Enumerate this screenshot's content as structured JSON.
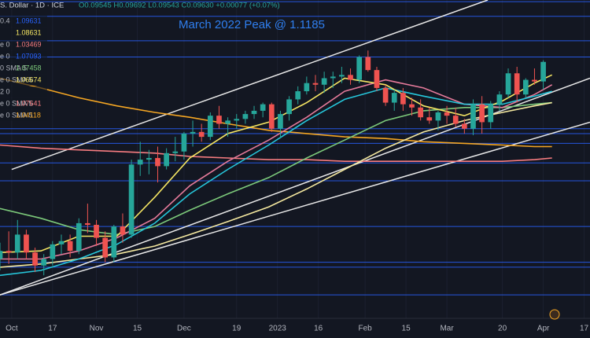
{
  "chart_data": {
    "type": "candlestick",
    "symbol": "S. Dollar · 1D · ICE",
    "ohlc_header": "O0.09545 H0.09692 L0.09543 C0.09630 +0.00077 (+0.07%)",
    "annotation": "March 2022 Peak @ 1.1185",
    "legend_rows": [
      {
        "label": "0.4",
        "value": 1.09631,
        "color": "#2962ff"
      },
      {
        "label": "",
        "value": 1.08631,
        "color": "#f5e663"
      },
      {
        "label": "e 0",
        "value": 1.03469,
        "color": "#f77c80"
      },
      {
        "label": "e 0",
        "value": 1.07093,
        "color": "#2962ff"
      },
      {
        "label": "0 SMA 5",
        "value": 1.07458,
        "color": "#7cc97a"
      },
      {
        "label": "e 0 SMA 5",
        "value": 1.06674,
        "color": "#f5e663"
      },
      {
        "label": "2 0",
        "value": null,
        "color": "#b2b5be"
      },
      {
        "label": "e 0 SMA 5",
        "value": 1.07641,
        "color": "#f77c80"
      },
      {
        "label": "e 0 SMA 5",
        "value": 1.04118,
        "color": "#f5a623"
      }
    ],
    "xlim": [
      -4,
      198
    ],
    "ylim": [
      0.941,
      1.134
    ],
    "xticks": [
      {
        "value": 0,
        "label": "Oct"
      },
      {
        "value": 14,
        "label": "17"
      },
      {
        "value": 29,
        "label": "Nov"
      },
      {
        "value": 43,
        "label": "15"
      },
      {
        "value": 59,
        "label": "Dec"
      },
      {
        "value": 77,
        "label": "19"
      },
      {
        "value": 91,
        "label": "2023"
      },
      {
        "value": 105,
        "label": "16"
      },
      {
        "value": 121,
        "label": "Feb"
      },
      {
        "value": 135,
        "label": "15"
      },
      {
        "value": 149,
        "label": "Mar"
      },
      {
        "value": 168,
        "label": "20"
      },
      {
        "value": 182,
        "label": "Apr"
      },
      {
        "value": 196,
        "label": "17"
      }
    ],
    "up_color": "#26a69a",
    "down_color": "#ef5350",
    "candles": {
      "x": [
        -4,
        -1,
        2,
        5,
        8,
        11,
        14,
        17,
        20,
        23,
        26,
        29,
        32,
        35,
        38,
        41,
        44,
        47,
        50,
        53,
        56,
        59,
        62,
        65,
        68,
        71,
        74,
        77,
        80,
        83,
        86,
        89,
        92,
        95,
        98,
        101,
        104,
        107,
        110,
        113,
        116,
        119,
        122,
        125,
        128,
        131,
        134,
        137,
        140,
        143,
        146,
        149,
        152,
        155,
        158,
        161,
        164,
        167,
        170,
        173,
        176,
        179,
        182
      ],
      "open": [
        0.975,
        0.98,
        0.979,
        0.99,
        0.979,
        0.971,
        0.975,
        0.984,
        0.986,
        0.98,
        0.997,
        0.996,
        0.988,
        0.976,
        0.995,
        0.99,
        1.033,
        1.036,
        1.037,
        1.032,
        1.04,
        1.041,
        1.052,
        1.053,
        1.05,
        1.063,
        1.058,
        1.06,
        1.061,
        1.064,
        1.066,
        1.07,
        1.055,
        1.064,
        1.073,
        1.078,
        1.083,
        1.082,
        1.086,
        1.087,
        1.088,
        1.085,
        1.099,
        1.091,
        1.08,
        1.071,
        1.077,
        1.07,
        1.068,
        1.062,
        1.06,
        1.065,
        1.063,
        1.058,
        1.055,
        1.07,
        1.059,
        1.07,
        1.076,
        1.089,
        1.076,
        1.085,
        1.084
      ],
      "high": [
        0.985,
        0.992,
        0.999,
        0.993,
        0.982,
        0.978,
        0.986,
        0.99,
        0.99,
        1.0,
        1.009,
        0.999,
        0.992,
        0.996,
        1.003,
        1.036,
        1.047,
        1.042,
        1.044,
        1.043,
        1.05,
        1.053,
        1.06,
        1.058,
        1.065,
        1.069,
        1.062,
        1.064,
        1.066,
        1.069,
        1.071,
        1.071,
        1.066,
        1.075,
        1.081,
        1.087,
        1.088,
        1.09,
        1.09,
        1.093,
        1.092,
        1.1,
        1.103,
        1.093,
        1.082,
        1.079,
        1.08,
        1.074,
        1.073,
        1.068,
        1.066,
        1.069,
        1.068,
        1.061,
        1.073,
        1.075,
        1.072,
        1.078,
        1.092,
        1.093,
        1.086,
        1.092,
        1.097
      ],
      "low": [
        0.968,
        0.972,
        0.975,
        0.975,
        0.967,
        0.965,
        0.971,
        0.978,
        0.976,
        0.978,
        0.991,
        0.983,
        0.973,
        0.973,
        0.985,
        0.988,
        1.026,
        1.027,
        1.022,
        1.03,
        1.035,
        1.036,
        1.044,
        1.047,
        1.048,
        1.055,
        1.05,
        1.055,
        1.058,
        1.061,
        1.062,
        1.053,
        1.049,
        1.06,
        1.07,
        1.076,
        1.078,
        1.077,
        1.08,
        1.083,
        1.082,
        1.083,
        1.09,
        1.078,
        1.069,
        1.066,
        1.066,
        1.063,
        1.06,
        1.058,
        1.054,
        1.058,
        1.056,
        1.052,
        1.051,
        1.052,
        1.055,
        1.066,
        1.074,
        1.071,
        1.074,
        1.082,
        1.079
      ],
      "close": [
        0.98,
        0.979,
        0.99,
        0.979,
        0.971,
        0.975,
        0.984,
        0.986,
        0.98,
        0.997,
        0.996,
        0.988,
        0.976,
        0.995,
        0.99,
        1.033,
        1.036,
        1.037,
        1.032,
        1.04,
        1.041,
        1.052,
        1.053,
        1.05,
        1.063,
        1.058,
        1.06,
        1.061,
        1.064,
        1.066,
        1.07,
        1.055,
        1.064,
        1.073,
        1.078,
        1.083,
        1.082,
        1.086,
        1.087,
        1.088,
        1.085,
        1.099,
        1.091,
        1.08,
        1.071,
        1.077,
        1.07,
        1.068,
        1.062,
        1.06,
        1.065,
        1.063,
        1.058,
        1.055,
        1.07,
        1.059,
        1.07,
        1.076,
        1.089,
        1.076,
        1.085,
        1.084,
        1.096
      ]
    },
    "ma_x": [
      -4,
      10,
      23,
      36,
      49,
      61,
      74,
      88,
      101,
      114,
      128,
      141,
      155,
      168,
      179,
      185
    ],
    "series": [
      {
        "color": "#f5a623",
        "values": [
          1.086,
          1.08,
          1.074,
          1.069,
          1.065,
          1.062,
          1.058,
          1.054,
          1.052,
          1.05,
          1.049,
          1.047,
          1.046,
          1.045,
          1.044,
          1.044
        ]
      },
      {
        "color": "#f77c80",
        "values": [
          1.045,
          1.043,
          1.042,
          1.041,
          1.04,
          1.038,
          1.037,
          1.036,
          1.036,
          1.035,
          1.035,
          1.035,
          1.035,
          1.035,
          1.036,
          1.037
        ]
      },
      {
        "color": "#7cc97a",
        "values": [
          1.006,
          1.0,
          0.993,
          0.99,
          0.995,
          1.005,
          1.015,
          1.025,
          1.037,
          1.048,
          1.06,
          1.066,
          1.068,
          1.068,
          1.07,
          1.071
        ]
      },
      {
        "color": "#f5e9a0",
        "values": [
          0.97,
          0.972,
          0.975,
          0.978,
          0.983,
          0.99,
          0.998,
          1.007,
          1.018,
          1.03,
          1.043,
          1.053,
          1.06,
          1.065,
          1.069,
          1.071
        ]
      },
      {
        "color": "#e57a9a",
        "values": [
          0.975,
          0.975,
          0.98,
          0.988,
          1.0,
          1.02,
          1.035,
          1.048,
          1.062,
          1.078,
          1.085,
          1.08,
          1.07,
          1.068,
          1.076,
          1.082
        ]
      },
      {
        "color": "#26c6da",
        "values": [
          0.965,
          0.968,
          0.975,
          0.984,
          0.997,
          1.015,
          1.03,
          1.045,
          1.06,
          1.073,
          1.08,
          1.075,
          1.07,
          1.07,
          1.075,
          1.078
        ]
      },
      {
        "color": "#f5e663",
        "values": [
          0.979,
          0.98,
          0.989,
          0.989,
          1.013,
          1.037,
          1.052,
          1.059,
          1.071,
          1.086,
          1.082,
          1.069,
          1.063,
          1.072,
          1.083,
          1.088
        ]
      }
    ],
    "levels": [
      1.133,
      1.124,
      1.109,
      1.099,
      1.055,
      1.052,
      1.046,
      1.034,
      1.023,
      0.995,
      0.973,
      0.97,
      0.953
    ],
    "level_color": "#2962ff",
    "trendlines": [
      {
        "x": [
          0,
          163
        ],
        "values": [
          1.03,
          1.134
        ]
      },
      {
        "x": [
          -4,
          198
        ],
        "values": [
          0.953,
          1.086
        ]
      },
      {
        "x": [
          -4,
          198
        ],
        "values": [
          0.953,
          1.059
        ]
      }
    ],
    "trendline_color": "#e8e8e8"
  }
}
